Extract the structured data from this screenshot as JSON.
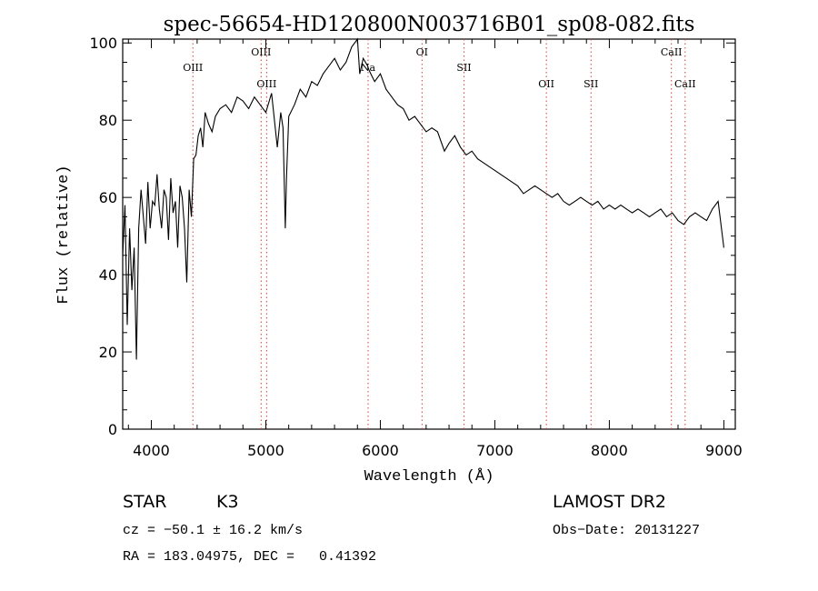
{
  "chart_data": {
    "type": "line",
    "title": "spec-56654-HD120800N003716B01_sp08-082.fits",
    "xlabel": "Wavelength (Å)",
    "ylabel": "Flux (relative)",
    "xlim": [
      3750,
      9100
    ],
    "ylim": [
      0,
      101
    ],
    "xticks": [
      4000,
      5000,
      6000,
      7000,
      8000,
      9000
    ],
    "yticks": [
      0,
      20,
      40,
      60,
      80,
      100
    ],
    "grid": false,
    "series": [
      {
        "x": [
          3750,
          3770,
          3790,
          3810,
          3830,
          3850,
          3870,
          3890,
          3910,
          3930,
          3950,
          3970,
          3990,
          4010,
          4030,
          4050,
          4070,
          4090,
          4110,
          4130,
          4150,
          4170,
          4190,
          4210,
          4230,
          4250,
          4270,
          4290,
          4310,
          4330,
          4350,
          4370,
          4390,
          4410,
          4430,
          4450,
          4470,
          4500,
          4530,
          4560,
          4600,
          4650,
          4700,
          4750,
          4800,
          4850,
          4900,
          4950,
          5000,
          5050,
          5100,
          5130,
          5150,
          5170,
          5180,
          5200,
          5250,
          5300,
          5350,
          5400,
          5450,
          5500,
          5550,
          5600,
          5650,
          5700,
          5750,
          5800,
          5820,
          5850,
          5890,
          5900,
          5950,
          6000,
          6050,
          6100,
          6150,
          6200,
          6250,
          6300,
          6350,
          6400,
          6450,
          6500,
          6560,
          6600,
          6650,
          6700,
          6750,
          6800,
          6850,
          6900,
          6950,
          7000,
          7050,
          7100,
          7150,
          7200,
          7250,
          7300,
          7350,
          7400,
          7450,
          7500,
          7550,
          7600,
          7650,
          7700,
          7750,
          7800,
          7850,
          7900,
          7950,
          8000,
          8050,
          8100,
          8150,
          8200,
          8250,
          8300,
          8350,
          8400,
          8450,
          8500,
          8550,
          8600,
          8650,
          8700,
          8750,
          8800,
          8850,
          8900,
          8950,
          9000
        ],
        "y": [
          45,
          58,
          27,
          52,
          36,
          47,
          18,
          52,
          62,
          55,
          48,
          64,
          52,
          59,
          58,
          66,
          57,
          52,
          62,
          60,
          49,
          65,
          56,
          59,
          47,
          63,
          60,
          52,
          38,
          62,
          55,
          70,
          71,
          76,
          78,
          73,
          82,
          79,
          77,
          81,
          83,
          84,
          82,
          86,
          85,
          83,
          86,
          84,
          82,
          87,
          73,
          82,
          78,
          52,
          65,
          81,
          84,
          88,
          86,
          90,
          89,
          92,
          94,
          96,
          93,
          95,
          99,
          101,
          92,
          96,
          94,
          93,
          90,
          92,
          88,
          86,
          84,
          83,
          80,
          81,
          79,
          77,
          78,
          77,
          72,
          74,
          76,
          73,
          71,
          72,
          70,
          69,
          68,
          67,
          66,
          65,
          64,
          63,
          61,
          62,
          63,
          62,
          61,
          60,
          61,
          59,
          58,
          59,
          60,
          59,
          58,
          59,
          57,
          58,
          57,
          58,
          57,
          56,
          57,
          56,
          55,
          56,
          57,
          55,
          56,
          54,
          53,
          55,
          56,
          55,
          54,
          57,
          59,
          47
        ]
      }
    ],
    "line_markers": [
      {
        "label": "OIII",
        "x": 4363,
        "row": 1
      },
      {
        "label": "OIII",
        "x": 4959,
        "row": 0
      },
      {
        "label": "OIII",
        "x": 5007,
        "row": 2
      },
      {
        "label": "Na",
        "x": 5893,
        "row": 1
      },
      {
        "label": "OI",
        "x": 6364,
        "row": 0
      },
      {
        "label": "SII",
        "x": 6731,
        "row": 1
      },
      {
        "label": "OII",
        "x": 7450,
        "row": 2
      },
      {
        "label": "SII",
        "x": 7840,
        "row": 2
      },
      {
        "label": "CaII",
        "x": 8542,
        "row": 0
      },
      {
        "label": "CaII",
        "x": 8662,
        "row": 2
      }
    ]
  },
  "info": {
    "object_class": "STAR",
    "subclass": "K3",
    "survey": "LAMOST DR2",
    "cz": "cz = −50.1 ± 16.2 km/s",
    "obs_date": "Obs−Date: 20131227",
    "radec": "RA = 183.04975, DEC =   0.41392"
  }
}
